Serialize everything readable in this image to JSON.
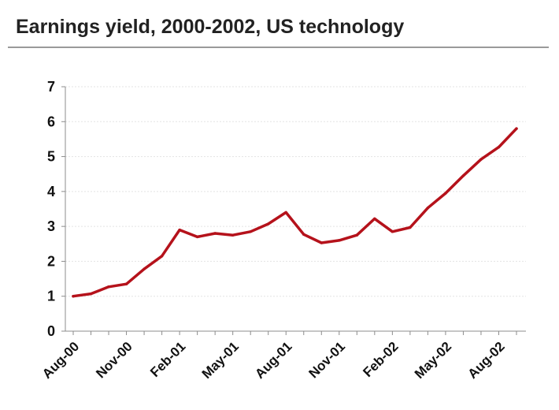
{
  "chart_data": {
    "type": "line",
    "title": "Earnings yield, 2000-2002, US technology",
    "xlabel": "",
    "ylabel": "",
    "ylim": [
      0,
      7
    ],
    "y_ticks": [
      0,
      1,
      2,
      3,
      4,
      5,
      6,
      7
    ],
    "x_tick_labels": [
      "Aug-00",
      "Nov-00",
      "Feb-01",
      "May-01",
      "Aug-01",
      "Nov-01",
      "Feb-02",
      "May-02",
      "Aug-02"
    ],
    "grid": true,
    "legend": "none",
    "series": [
      {
        "color": "#b5121b",
        "x": [
          "Aug-00",
          "Sep-00",
          "Oct-00",
          "Nov-00",
          "Dec-00",
          "Jan-01",
          "Feb-01",
          "Mar-01",
          "Apr-01",
          "May-01",
          "Jun-01",
          "Jul-01",
          "Aug-01",
          "Sep-01",
          "Oct-01",
          "Nov-01",
          "Dec-01",
          "Jan-02",
          "Feb-02",
          "Mar-02",
          "Apr-02",
          "May-02",
          "Jun-02",
          "Jul-02",
          "Aug-02",
          "Sep-02"
        ],
        "values": [
          1.0,
          1.07,
          1.27,
          1.35,
          1.78,
          2.15,
          2.9,
          2.7,
          2.8,
          2.75,
          2.85,
          3.07,
          3.4,
          2.77,
          2.53,
          2.6,
          2.75,
          3.22,
          2.85,
          2.97,
          3.53,
          3.95,
          4.45,
          4.92,
          5.27,
          5.8
        ]
      }
    ]
  }
}
